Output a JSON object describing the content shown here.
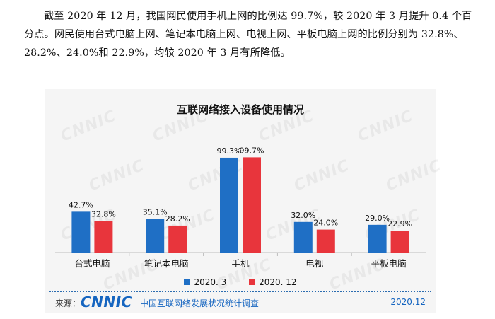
{
  "paragraph": "截至 2020 年 12 月，我国网民使用手机上网的比例达 99.7%，较 2020 年 3 月提升 0.4 个百分点。网民使用台式电脑上网、笔记本电脑上网、电视上网、平板电脑上网的比例分别为 32.8%、28.2%、24.0%和 22.9%，均较 2020 年 3 月有所降低。",
  "watermark": "CNNIC",
  "footer": {
    "source_label": "来源：",
    "logo": "CNNIC",
    "org": "中国互联网络发展状况统计调查",
    "date": "2020.12"
  },
  "chart_data": {
    "type": "bar",
    "title": "互联网络接入设备使用情况",
    "categories": [
      "台式电脑",
      "笔记本电脑",
      "手机",
      "电视",
      "平板电脑"
    ],
    "series": [
      {
        "name": "2020. 3",
        "color": "#1f6fc5",
        "values": [
          42.7,
          35.1,
          99.3,
          32.0,
          29.0
        ],
        "labels": [
          "42.7%",
          "35.1%",
          "99.3%",
          "32.0%",
          "29.0%"
        ]
      },
      {
        "name": "2020. 12",
        "color": "#e8353c",
        "values": [
          32.8,
          28.2,
          99.7,
          24.0,
          22.9
        ],
        "labels": [
          "32.8%",
          "28.2%",
          "99.7%",
          "24.0%",
          "22.9%"
        ]
      }
    ],
    "ylim": [
      0,
      100
    ],
    "grid": false,
    "legend_position": "bottom"
  }
}
